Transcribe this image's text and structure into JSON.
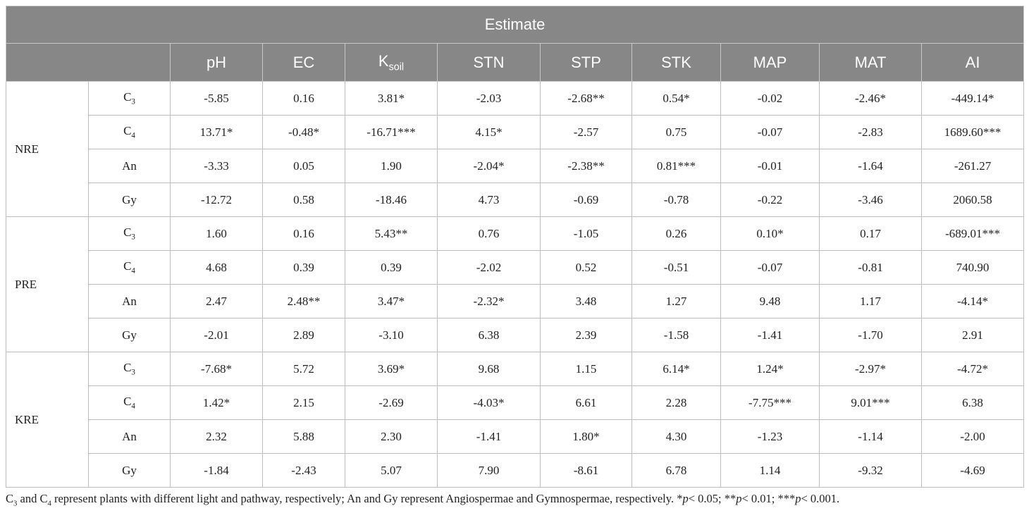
{
  "table": {
    "title": "Estimate",
    "columns": [
      "pH",
      "EC",
      {
        "text": "K",
        "sub": "soil"
      },
      "STN",
      "STP",
      "STK",
      "MAP",
      "MAT",
      "AI"
    ],
    "groups": [
      {
        "name": "NRE",
        "rows": [
          {
            "label": {
              "text": "C",
              "sub": "3"
            },
            "cells": [
              "-5.85",
              "0.16",
              "3.81*",
              "-2.03",
              "-2.68**",
              "0.54*",
              "-0.02",
              "-2.46*",
              "-449.14*"
            ]
          },
          {
            "label": {
              "text": "C",
              "sub": "4"
            },
            "cells": [
              "13.71*",
              "-0.48*",
              "-16.71***",
              "4.15*",
              "-2.57",
              "0.75",
              "-0.07",
              "-2.83",
              "1689.60***"
            ]
          },
          {
            "label": "An",
            "cells": [
              "-3.33",
              "0.05",
              "1.90",
              "-2.04*",
              "-2.38**",
              "0.81***",
              "-0.01",
              "-1.64",
              "-261.27"
            ]
          },
          {
            "label": "Gy",
            "cells": [
              "-12.72",
              "0.58",
              "-18.46",
              "4.73",
              "-0.69",
              "-0.78",
              "-0.22",
              "-3.46",
              "2060.58"
            ]
          }
        ]
      },
      {
        "name": "PRE",
        "rows": [
          {
            "label": {
              "text": "C",
              "sub": "3"
            },
            "cells": [
              "1.60",
              "0.16",
              "5.43**",
              "0.76",
              "-1.05",
              "0.26",
              "0.10*",
              "0.17",
              "-689.01***"
            ]
          },
          {
            "label": {
              "text": "C",
              "sub": "4"
            },
            "cells": [
              "4.68",
              "0.39",
              "0.39",
              "-2.02",
              "0.52",
              "-0.51",
              "-0.07",
              "-0.81",
              "740.90"
            ]
          },
          {
            "label": "An",
            "cells": [
              "2.47",
              "2.48**",
              "3.47*",
              "-2.32*",
              "3.48",
              "1.27",
              "9.48",
              "1.17",
              "-4.14*"
            ]
          },
          {
            "label": "Gy",
            "cells": [
              "-2.01",
              "2.89",
              "-3.10",
              "6.38",
              "2.39",
              "-1.58",
              "-1.41",
              "-1.70",
              "2.91"
            ]
          }
        ]
      },
      {
        "name": "KRE",
        "rows": [
          {
            "label": {
              "text": "C",
              "sub": "3"
            },
            "cells": [
              "-7.68*",
              "5.72",
              "3.69*",
              "9.68",
              "1.15",
              "6.14*",
              "1.24*",
              "-2.97*",
              "-4.72*"
            ]
          },
          {
            "label": {
              "text": "C",
              "sub": "4"
            },
            "cells": [
              "1.42*",
              "2.15",
              "-2.69",
              "-4.03*",
              "6.61",
              "2.28",
              "-7.75***",
              "9.01***",
              "6.38"
            ]
          },
          {
            "label": "An",
            "cells": [
              "2.32",
              "5.88",
              "2.30",
              "-1.41",
              "1.80*",
              "4.30",
              "-1.23",
              "-1.14",
              "-2.00"
            ]
          },
          {
            "label": "Gy",
            "cells": [
              "-1.84",
              "-2.43",
              "5.07",
              "7.90",
              "-8.61",
              "6.78",
              "1.14",
              "-9.32",
              "-4.69"
            ]
          }
        ]
      }
    ]
  },
  "footnote": [
    {
      "text": "C"
    },
    {
      "sub": "3"
    },
    {
      "text": " and C"
    },
    {
      "sub": "4"
    },
    {
      "text": " represent plants with different light and pathway, respectively; An and Gy represent Angiospermae and Gymnospermae, respectively. *"
    },
    {
      "italic": "p"
    },
    {
      "text": "< 0.05; **"
    },
    {
      "italic": "p"
    },
    {
      "text": "< 0.01; ***"
    },
    {
      "italic": "p"
    },
    {
      "text": "< 0.001."
    }
  ]
}
